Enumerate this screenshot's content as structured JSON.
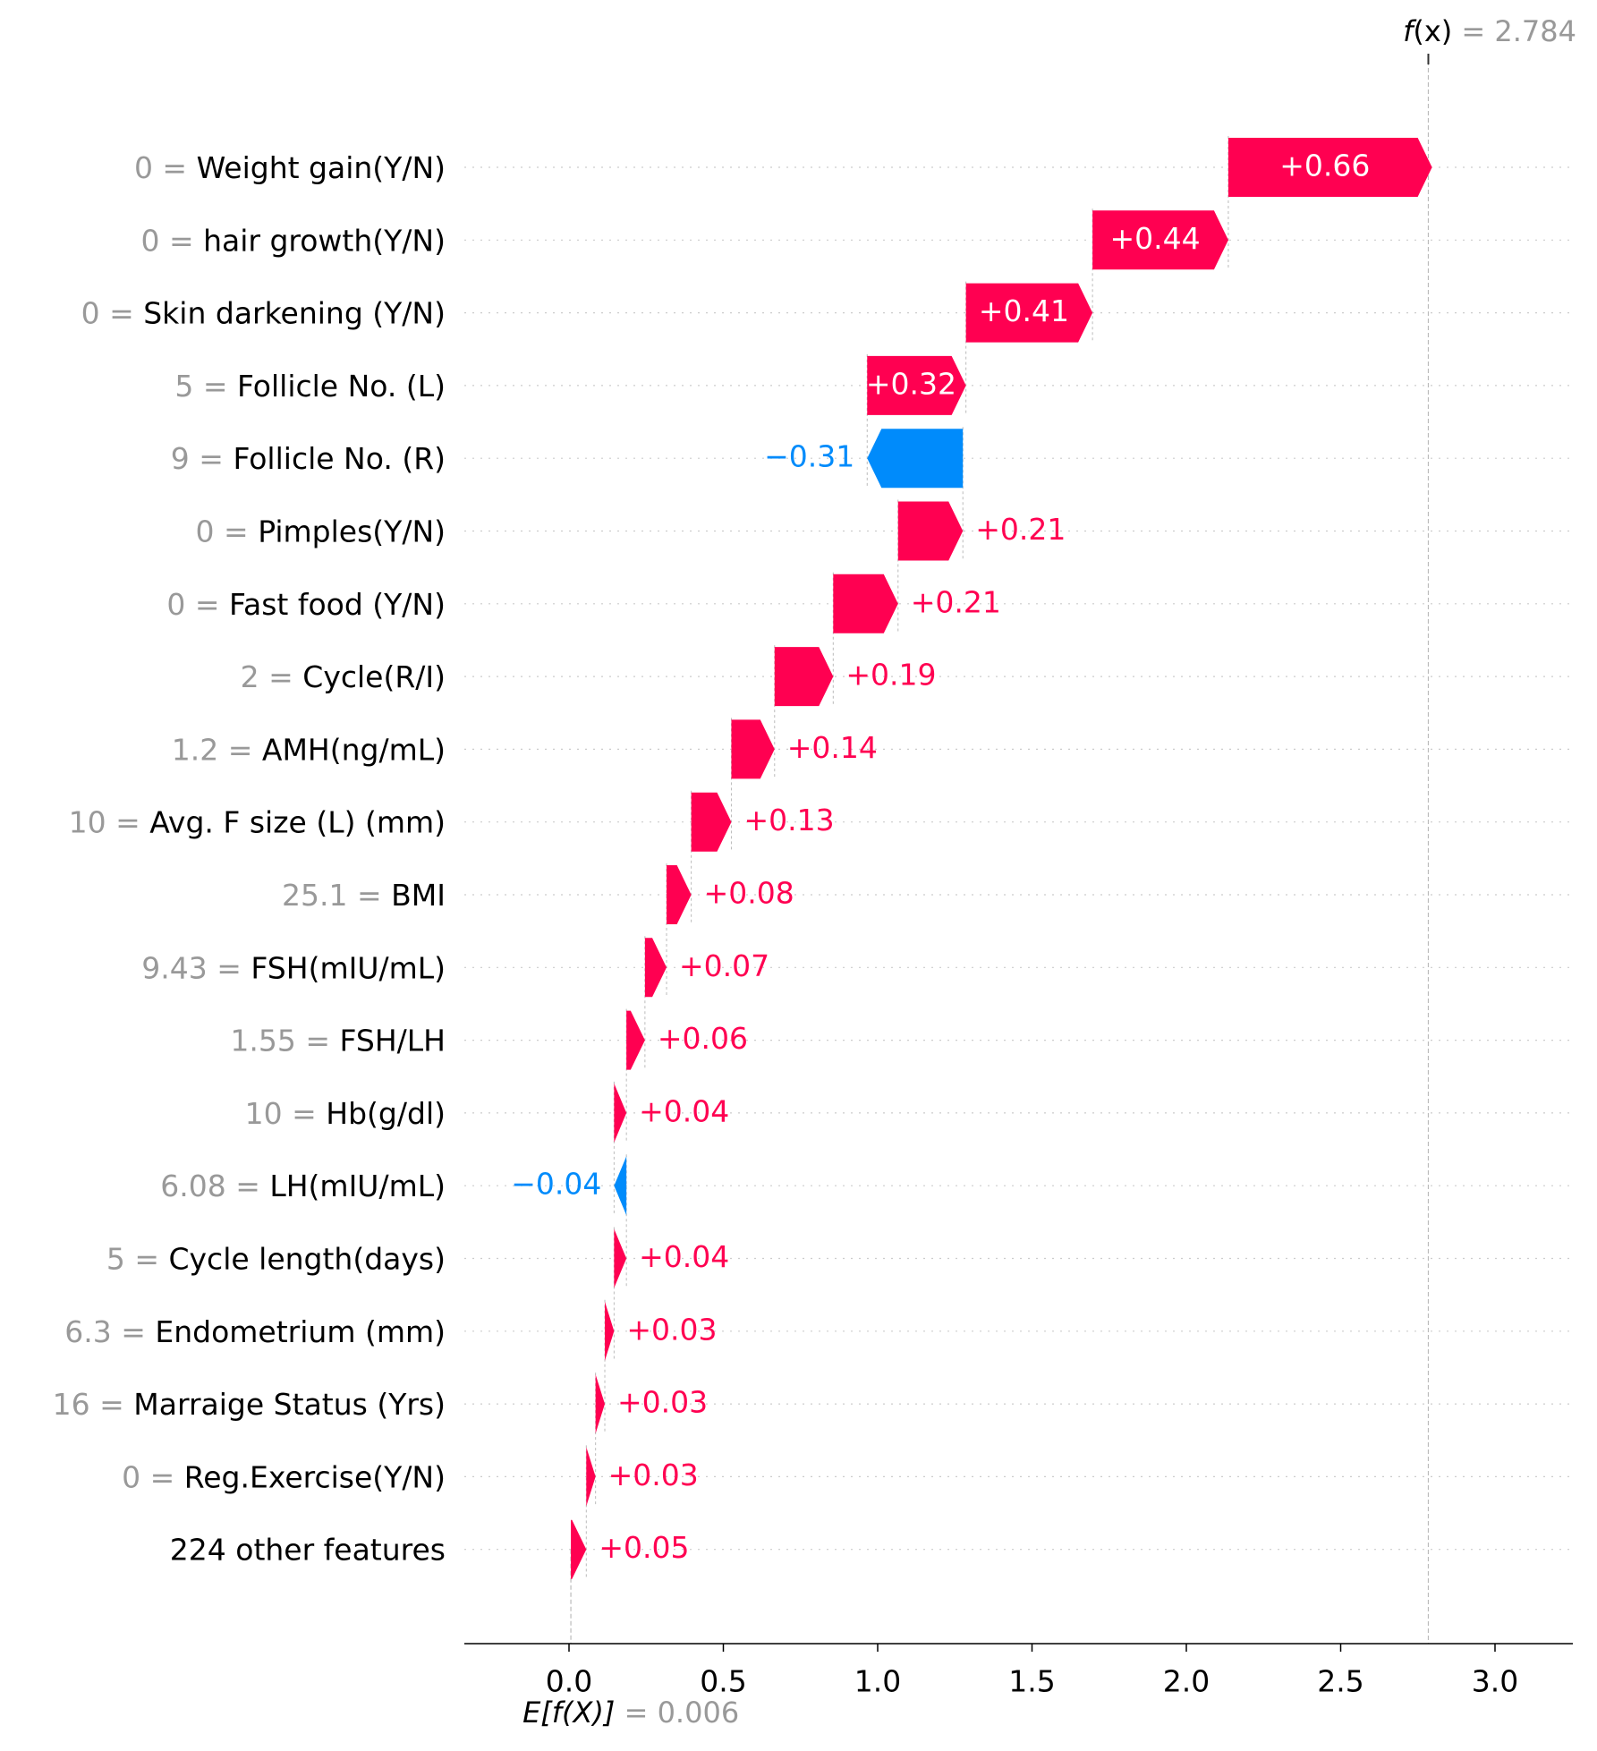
{
  "chart_data": {
    "type": "waterfall",
    "fx": {
      "prefix": "f",
      "arg": "(x)",
      "eq": " = ",
      "value": "2.784",
      "numeric": 2.784
    },
    "efx": {
      "label": "E[f(X)]",
      "eq": " = ",
      "value": "0.006",
      "numeric": 0.006
    },
    "xlim": [
      -0.34,
      3.25
    ],
    "xticks": [
      "0.0",
      "0.5",
      "1.0",
      "1.5",
      "2.0",
      "2.5",
      "3.0"
    ],
    "features": [
      {
        "value": "0",
        "name": "Weight gain(Y/N)",
        "contribution": 0.66,
        "label": "+0.66"
      },
      {
        "value": "0",
        "name": "hair growth(Y/N)",
        "contribution": 0.44,
        "label": "+0.44"
      },
      {
        "value": "0",
        "name": "Skin darkening (Y/N)",
        "contribution": 0.41,
        "label": "+0.41"
      },
      {
        "value": "5",
        "name": "Follicle No. (L)",
        "contribution": 0.32,
        "label": "+0.32"
      },
      {
        "value": "9",
        "name": "Follicle No. (R)",
        "contribution": -0.31,
        "label": "−0.31"
      },
      {
        "value": "0",
        "name": "Pimples(Y/N)",
        "contribution": 0.21,
        "label": "+0.21"
      },
      {
        "value": "0",
        "name": "Fast food (Y/N)",
        "contribution": 0.21,
        "label": "+0.21"
      },
      {
        "value": "2",
        "name": "Cycle(R/I)",
        "contribution": 0.19,
        "label": "+0.19"
      },
      {
        "value": "1.2",
        "name": "AMH(ng/mL)",
        "contribution": 0.14,
        "label": "+0.14"
      },
      {
        "value": "10",
        "name": "Avg. F size (L) (mm)",
        "contribution": 0.13,
        "label": "+0.13"
      },
      {
        "value": "25.1",
        "name": "BMI",
        "contribution": 0.08,
        "label": "+0.08"
      },
      {
        "value": "9.43",
        "name": "FSH(mIU/mL)",
        "contribution": 0.07,
        "label": "+0.07"
      },
      {
        "value": "1.55",
        "name": "FSH/LH",
        "contribution": 0.06,
        "label": "+0.06"
      },
      {
        "value": "10",
        "name": "Hb(g/dl)",
        "contribution": 0.04,
        "label": "+0.04"
      },
      {
        "value": "6.08",
        "name": "LH(mIU/mL)",
        "contribution": -0.04,
        "label": "−0.04"
      },
      {
        "value": "5",
        "name": "Cycle length(days)",
        "contribution": 0.04,
        "label": "+0.04"
      },
      {
        "value": "6.3",
        "name": "Endometrium (mm)",
        "contribution": 0.03,
        "label": "+0.03"
      },
      {
        "value": "16",
        "name": "Marraige Status (Yrs)",
        "contribution": 0.03,
        "label": "+0.03"
      },
      {
        "value": "0",
        "name": "Reg.Exercise(Y/N)",
        "contribution": 0.03,
        "label": "+0.03"
      },
      {
        "value": "",
        "name": "224 other features",
        "contribution": 0.05,
        "label": "+0.05"
      }
    ],
    "colors": {
      "positive": "#ff0051",
      "negative": "#008bfb",
      "muted": "#999999",
      "text": "#000000"
    }
  }
}
